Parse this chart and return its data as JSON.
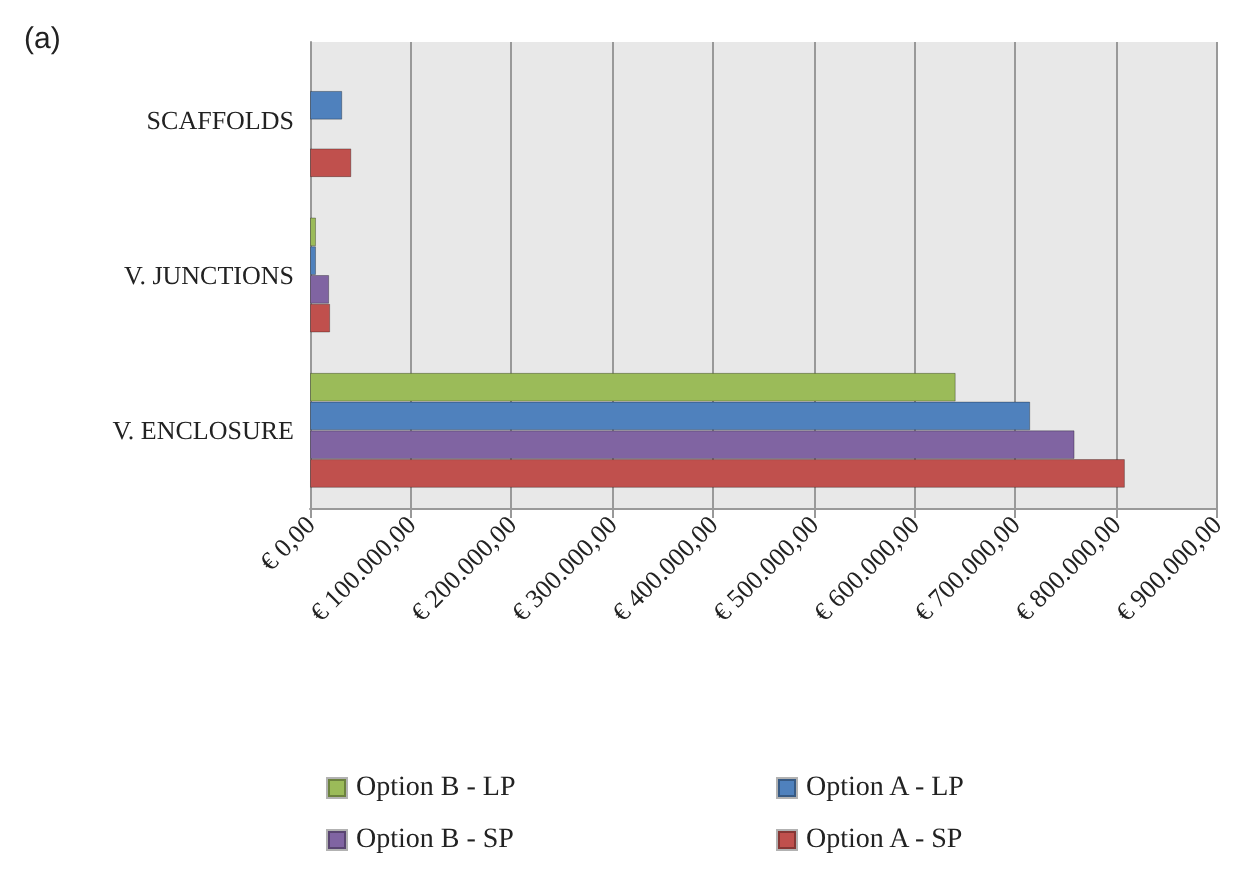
{
  "chart_data": {
    "type": "bar",
    "orientation": "horizontal",
    "annotations": [
      "(a)"
    ],
    "categories": [
      "SCAFFOLDS",
      "V. JUNCTIONS",
      "V. ENCLOSURE"
    ],
    "series": [
      {
        "name": "Option B - LP",
        "color": "#9bbb59",
        "values": [
          null,
          6000,
          641000
        ]
      },
      {
        "name": "Option A - LP",
        "color": "#4f81bd",
        "values": [
          32000,
          6000,
          715000
        ]
      },
      {
        "name": "Option B - SP",
        "color": "#8064a2",
        "values": [
          null,
          19000,
          759000
        ]
      },
      {
        "name": "Option A - SP",
        "color": "#c0504d",
        "values": [
          41000,
          20000,
          809000
        ]
      }
    ],
    "xlim": [
      0,
      900000
    ],
    "xticks": [
      {
        "value": 0,
        "label": "€ 0,00"
      },
      {
        "value": 100000,
        "label": "€ 100.000,00"
      },
      {
        "value": 200000,
        "label": "€ 200.000,00"
      },
      {
        "value": 300000,
        "label": "€ 300.000,00"
      },
      {
        "value": 400000,
        "label": "€ 400.000,00"
      },
      {
        "value": 500000,
        "label": "€ 500.000,00"
      },
      {
        "value": 600000,
        "label": "€ 600.000,00"
      },
      {
        "value": 700000,
        "label": "€ 700.000,00"
      },
      {
        "value": 800000,
        "label": "€ 800.000,00"
      },
      {
        "value": 900000,
        "label": "€ 900.000,00"
      }
    ],
    "grid": "x",
    "legend": "bottom"
  }
}
